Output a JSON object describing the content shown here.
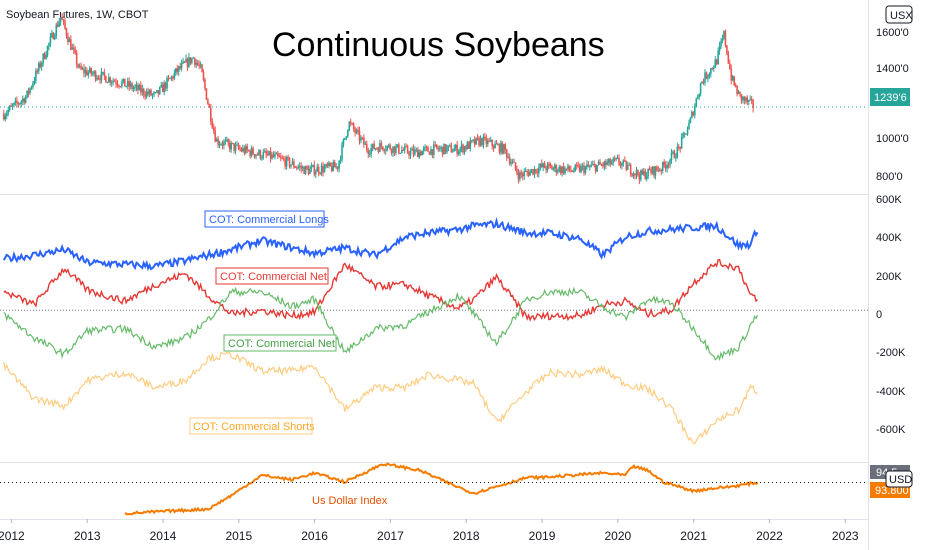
{
  "header": {
    "symbol_line": "Soybean Futures, 1W, CBOT",
    "currency_btn": "USX",
    "currency_btn_bottom": "USD"
  },
  "colors": {
    "up": "#26a69a",
    "down": "#ef5350",
    "longs": "#2962ff",
    "net_red": "#e53935",
    "net_green": "#66bb6a",
    "shorts": "#ffcc80",
    "dxy": "#f57c00",
    "grid": "#e0e3eb"
  },
  "chart_data": [
    {
      "type": "candlestick",
      "title": "Continuous Soybeans",
      "x": [
        2011.9,
        2012.2,
        2012.5,
        2012.65,
        2012.9,
        2013.3,
        2013.6,
        2013.9,
        2014.2,
        2014.4,
        2014.5,
        2014.7,
        2015.0,
        2015.5,
        2015.9,
        2016.3,
        2016.45,
        2016.7,
        2016.9,
        2017.3,
        2017.6,
        2017.9,
        2018.2,
        2018.5,
        2018.7,
        2019.0,
        2019.4,
        2019.8,
        2020.0,
        2020.3,
        2020.6,
        2020.8,
        2020.95,
        2021.1,
        2021.3,
        2021.4,
        2021.5,
        2021.6,
        2021.8
      ],
      "close": [
        1200,
        1300,
        1600,
        1750,
        1450,
        1400,
        1350,
        1300,
        1450,
        1520,
        1450,
        1050,
        1000,
        950,
        880,
        900,
        1150,
        1000,
        1020,
        980,
        1000,
        1000,
        1050,
        1000,
        850,
        900,
        880,
        910,
        930,
        850,
        900,
        1000,
        1150,
        1380,
        1500,
        1650,
        1400,
        1300,
        1240
      ],
      "last_label": "1239'6",
      "y_ticks": [
        "1600'0",
        "1400'0",
        "1200'0",
        "1000'0",
        "800'0"
      ],
      "ylim": [
        780,
        1790
      ]
    },
    {
      "type": "line",
      "y_ticks": [
        "600K",
        "400K",
        "200K",
        "0",
        "-200K",
        "-400K",
        "-600K"
      ],
      "ylim": [
        -760000,
        600000
      ],
      "x": [
        2011.9,
        2012.3,
        2012.7,
        2013.0,
        2013.5,
        2013.9,
        2014.3,
        2014.6,
        2014.9,
        2015.3,
        2015.7,
        2016.0,
        2016.4,
        2016.8,
        2017.2,
        2017.5,
        2017.9,
        2018.1,
        2018.4,
        2018.8,
        2019.1,
        2019.5,
        2019.8,
        2020.1,
        2020.4,
        2020.7,
        2021.0,
        2021.3,
        2021.6,
        2021.75,
        2021.85
      ],
      "series": [
        {
          "name": "COT: Commercial Longs",
          "values": [
            280000,
            300000,
            330000,
            260000,
            250000,
            240000,
            270000,
            300000,
            330000,
            380000,
            340000,
            310000,
            340000,
            300000,
            400000,
            420000,
            440000,
            460000,
            470000,
            420000,
            420000,
            390000,
            300000,
            400000,
            430000,
            440000,
            450000,
            460000,
            350000,
            360000,
            450000
          ]
        },
        {
          "name": "COT: Commercial Net",
          "values": [
            100000,
            30000,
            230000,
            110000,
            50000,
            140000,
            200000,
            80000,
            -20000,
            0,
            -30000,
            -10000,
            250000,
            130000,
            140000,
            80000,
            10000,
            60000,
            180000,
            -40000,
            -30000,
            -30000,
            30000,
            50000,
            -20000,
            0,
            150000,
            260000,
            230000,
            80000,
            50000
          ]
        },
        {
          "name": "COT: Commercial Net",
          "values": [
            -20000,
            -150000,
            -240000,
            -110000,
            -100000,
            -200000,
            -150000,
            -50000,
            100000,
            100000,
            20000,
            60000,
            -230000,
            -100000,
            -80000,
            -10000,
            80000,
            -20000,
            -180000,
            60000,
            100000,
            100000,
            20000,
            -40000,
            60000,
            40000,
            -100000,
            -260000,
            -200000,
            -80000,
            -20000
          ]
        },
        {
          "name": "COT: Commercial Shorts",
          "values": [
            -300000,
            -480000,
            -520000,
            -380000,
            -340000,
            -420000,
            -380000,
            -260000,
            -240000,
            -330000,
            -330000,
            -300000,
            -540000,
            -420000,
            -420000,
            -350000,
            -380000,
            -400000,
            -610000,
            -440000,
            -340000,
            -350000,
            -320000,
            -400000,
            -430000,
            -530000,
            -730000,
            -600000,
            -540000,
            -420000,
            -440000
          ]
        }
      ]
    },
    {
      "type": "line",
      "x": [
        2013.5,
        2014.6,
        2014.9,
        2015.3,
        2015.7,
        2016.0,
        2016.4,
        2016.9,
        2017.1,
        2017.4,
        2017.8,
        2018.1,
        2018.4,
        2018.8,
        2019.0,
        2019.4,
        2019.8,
        2020.1,
        2020.2,
        2020.4,
        2020.6,
        2021.0,
        2021.2,
        2021.5,
        2021.7,
        2021.85
      ],
      "series": [
        {
          "name": "Us Dollar Index",
          "values": [
            80,
            82,
            88,
            97,
            95,
            98,
            94,
            102,
            101,
            99,
            93,
            89,
            92,
            96,
            96,
            97,
            98,
            97,
            101,
            99,
            94,
            90,
            91,
            92,
            93,
            93.8
          ]
        }
      ],
      "last_label": "93.800",
      "prev_label": "94.5",
      "ylim": [
        78,
        102
      ]
    }
  ],
  "x_axis": {
    "ticks": [
      "2012",
      "2013",
      "2014",
      "2015",
      "2016",
      "2017",
      "2018",
      "2019",
      "2020",
      "2021",
      "2022",
      "2023"
    ],
    "range": [
      2011.85,
      2023.3
    ]
  }
}
